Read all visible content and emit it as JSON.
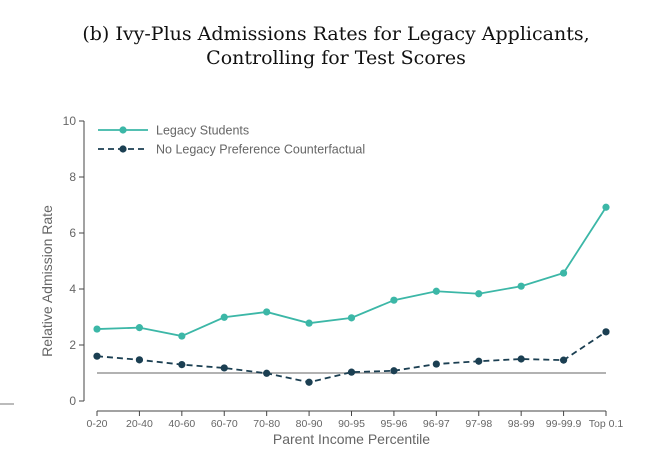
{
  "chart_data": {
    "type": "line",
    "title": "(b) Ivy-Plus Admissions Rates for Legacy Applicants,",
    "subtitle": "Controlling for Test Scores",
    "xlabel": "Parent Income Percentile",
    "ylabel": "Relative Admission Rate",
    "categories": [
      "0-20",
      "20-40",
      "40-60",
      "60-70",
      "70-80",
      "80-90",
      "90-95",
      "95-96",
      "96-97",
      "97-98",
      "98-99",
      "99-99.9",
      "Top 0.1"
    ],
    "yticks": [
      0,
      2,
      4,
      6,
      8,
      10
    ],
    "ylim": [
      0,
      10
    ],
    "reference_line": 1,
    "legend_position": "top-left",
    "grid": false,
    "series": [
      {
        "name": "Legacy Students",
        "color": "#3cb7a7",
        "style": "solid",
        "values": [
          2.57,
          2.62,
          2.32,
          2.99,
          3.18,
          2.78,
          2.97,
          3.6,
          3.92,
          3.83,
          4.1,
          4.57,
          6.92
        ]
      },
      {
        "name": "No Legacy Preference Counterfactual",
        "color": "#1b3f52",
        "style": "dashed",
        "values": [
          1.6,
          1.47,
          1.3,
          1.18,
          0.99,
          0.67,
          1.03,
          1.08,
          1.32,
          1.42,
          1.5,
          1.46,
          2.47
        ]
      }
    ]
  }
}
